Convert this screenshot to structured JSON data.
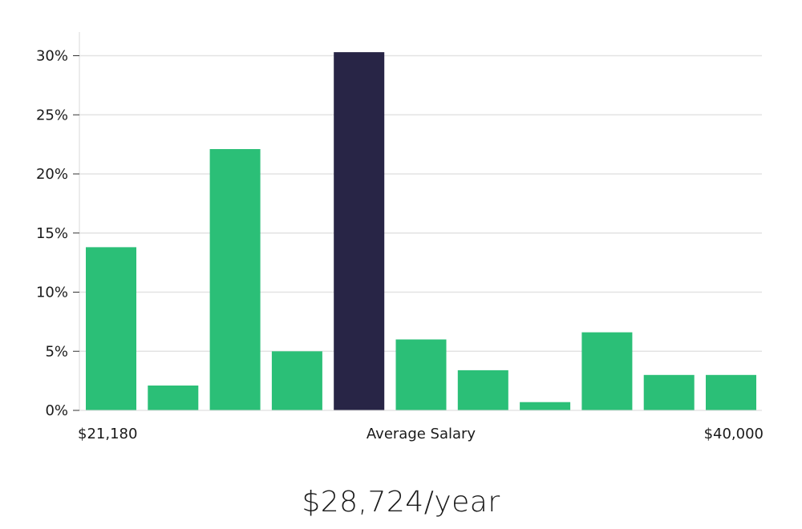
{
  "chart_data": {
    "type": "bar",
    "values": [
      13.8,
      2.1,
      22.1,
      5.0,
      30.3,
      6.0,
      3.4,
      0.7,
      6.6,
      3.0,
      3.0
    ],
    "highlight_index": 4,
    "x_labels": {
      "left": "$21,180",
      "middle": "Average Salary",
      "right": "$40,000"
    },
    "ylim": [
      0,
      32
    ],
    "y_ticks": [
      0,
      5,
      10,
      15,
      20,
      25,
      30
    ],
    "y_tick_labels": [
      "0%",
      "5%",
      "10%",
      "15%",
      "20%",
      "25%",
      "30%"
    ],
    "grid": true,
    "colors": {
      "bar": "#2bbf77",
      "highlight": "#282546",
      "grid": "#e3e3e3",
      "axis": "#d8d8d8"
    }
  },
  "average_salary": "$28,724/year"
}
